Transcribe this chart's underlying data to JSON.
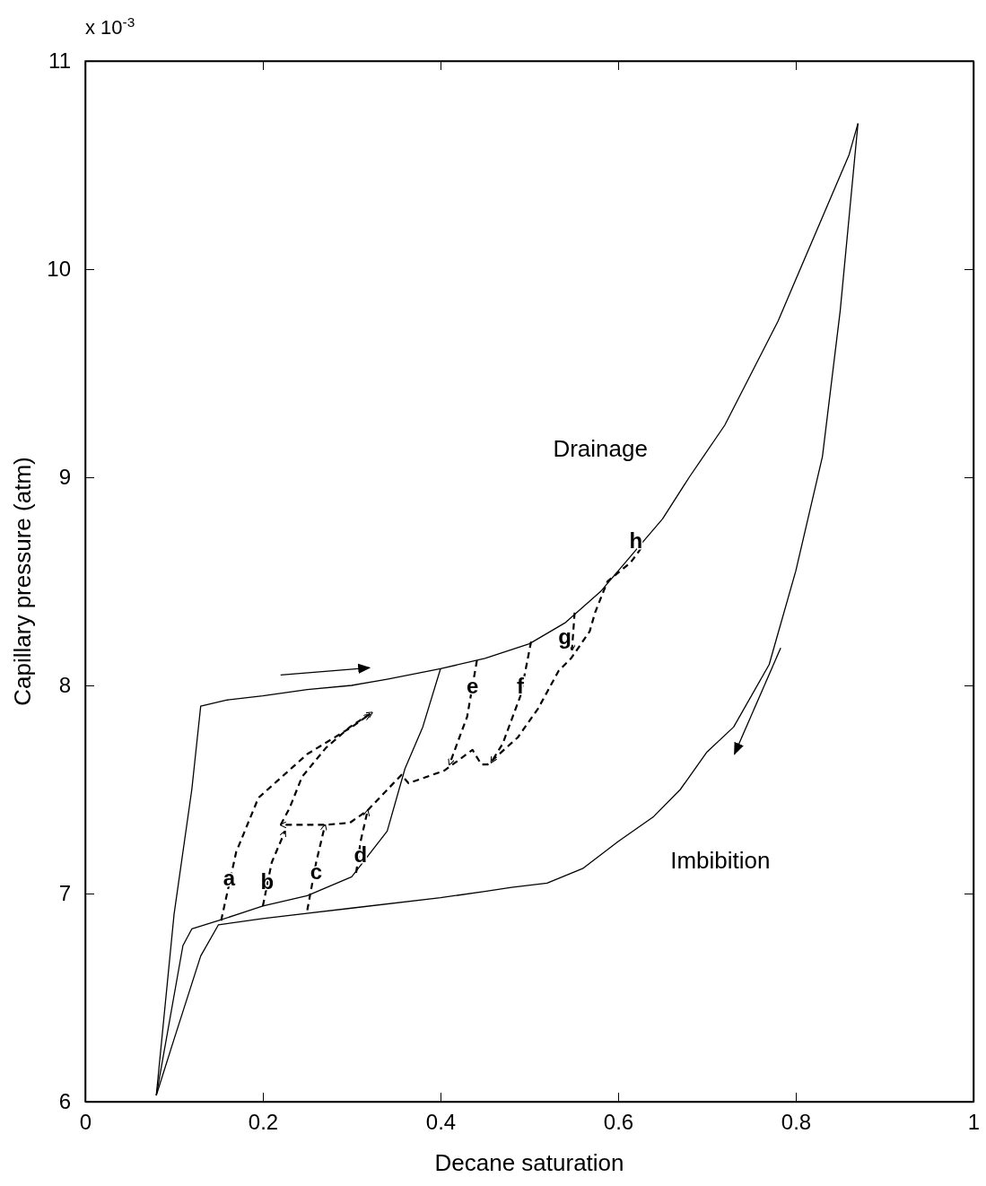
{
  "chart_data": {
    "type": "line",
    "xlabel": "Decane saturation",
    "ylabel": "Capillary pressure (atm)",
    "xlim": [
      0,
      1
    ],
    "xticks": [
      0,
      0.2,
      0.4,
      0.6,
      0.8,
      1
    ],
    "ylim": [
      6,
      11
    ],
    "yticks": [
      6,
      7,
      8,
      9,
      10,
      11
    ],
    "grid": false,
    "annotations": [
      "x 10$^{-3}$",
      "Drainage",
      "Imbibition",
      {
        "text": "a",
        "x": 0.162,
        "y": 7.04
      },
      {
        "text": "b",
        "x": 0.205,
        "y": 7.02
      },
      {
        "text": "c",
        "x": 0.26,
        "y": 7.07
      },
      {
        "text": "d",
        "x": 0.31,
        "y": 7.15
      },
      {
        "text": "e",
        "x": 0.436,
        "y": 7.96
      },
      {
        "text": "f",
        "x": 0.49,
        "y": 7.96
      },
      "g",
      {
        "text": "h",
        "x": 0.62,
        "y": 8.66
      }
    ],
    "series": [
      {
        "color": "#000000",
        "line_style": "solid",
        "x": [
          0.08,
          0.1,
          0.12,
          0.13,
          0.16,
          0.2,
          0.25,
          0.3,
          0.34,
          0.4,
          0.45,
          0.5,
          0.54,
          0.58,
          0.62,
          0.65,
          0.68,
          0.72,
          0.75,
          0.78,
          0.8,
          0.83,
          0.86,
          0.87
        ],
        "values": [
          6.03,
          6.9,
          7.5,
          7.9,
          7.93,
          7.95,
          7.98,
          8.0,
          8.03,
          8.08,
          8.13,
          8.2,
          8.3,
          8.45,
          8.65,
          8.8,
          9.0,
          9.25,
          9.5,
          9.75,
          9.95,
          10.25,
          10.55,
          10.7
        ]
      },
      {
        "color": "#000000",
        "line_style": "solid",
        "x": [
          0.87,
          0.85,
          0.83,
          0.8,
          0.77,
          0.73,
          0.7,
          0.67,
          0.64,
          0.6,
          0.56,
          0.52,
          0.48,
          0.45,
          0.4,
          0.3,
          0.2,
          0.15,
          0.13,
          0.1,
          0.08
        ],
        "values": [
          10.7,
          9.8,
          9.1,
          8.55,
          8.1,
          7.8,
          7.68,
          7.5,
          7.37,
          7.25,
          7.12,
          7.05,
          7.03,
          7.01,
          6.98,
          6.93,
          6.88,
          6.85,
          6.7,
          6.3,
          6.03
        ]
      },
      {
        "color": "#000000",
        "line_style": "solid",
        "x": [
          0.08,
          0.11,
          0.12,
          0.15,
          0.2,
          0.25,
          0.3,
          0.34,
          0.36,
          0.38,
          0.4
        ],
        "values": [
          6.03,
          6.75,
          6.83,
          6.87,
          6.94,
          6.99,
          7.08,
          7.3,
          7.6,
          7.8,
          8.08
        ]
      },
      {
        "color": "#000000",
        "line_style": "dashed",
        "x": [
          0.153,
          0.17,
          0.195,
          0.25,
          0.3,
          0.32
        ],
        "values": [
          6.87,
          7.2,
          7.46,
          7.67,
          7.8,
          7.86
        ]
      },
      {
        "color": "#000000",
        "line_style": "dashed",
        "x": [
          0.2,
          0.21,
          0.225
        ],
        "values": [
          6.94,
          7.15,
          7.3
        ]
      },
      {
        "color": "#000000",
        "line_style": "dashed",
        "x": [
          0.25,
          0.26,
          0.27
        ],
        "values": [
          6.92,
          7.15,
          7.33
        ]
      },
      {
        "color": "#000000",
        "line_style": "dashed",
        "x": [
          0.305,
          0.31,
          0.318
        ],
        "values": [
          7.1,
          7.25,
          7.4
        ]
      },
      {
        "color": "#000000",
        "line_style": "dashed",
        "x": [
          0.441,
          0.43,
          0.41
        ],
        "values": [
          8.12,
          7.85,
          7.62
        ]
      },
      {
        "color": "#000000",
        "line_style": "dashed",
        "x": [
          0.502,
          0.49,
          0.47,
          0.457
        ],
        "values": [
          8.21,
          7.95,
          7.72,
          7.63
        ]
      },
      {
        "color": "#000000",
        "line_style": "dashed",
        "x": [
          0.551,
          0.548
        ],
        "values": [
          8.35,
          8.17
        ]
      },
      {
        "color": "#000000",
        "line_style": "dashed",
        "x": [
          0.22,
          0.23,
          0.244,
          0.271,
          0.298,
          0.323
        ],
        "values": [
          7.33,
          7.41,
          7.56,
          7.7,
          7.8,
          7.87
        ]
      },
      {
        "color": "#000000",
        "line_style": "dashed",
        "x": [
          0.626,
          0.614,
          0.588,
          0.574,
          0.568,
          0.547,
          0.533,
          0.51,
          0.487,
          0.453,
          0.446,
          0.436,
          0.404,
          0.364,
          0.356,
          0.318,
          0.298,
          0.27,
          0.22
        ],
        "values": [
          8.66,
          8.59,
          8.5,
          8.35,
          8.26,
          8.13,
          8.07,
          7.89,
          7.75,
          7.62,
          7.62,
          7.69,
          7.59,
          7.53,
          7.57,
          7.4,
          7.34,
          7.33,
          7.33
        ]
      }
    ]
  }
}
